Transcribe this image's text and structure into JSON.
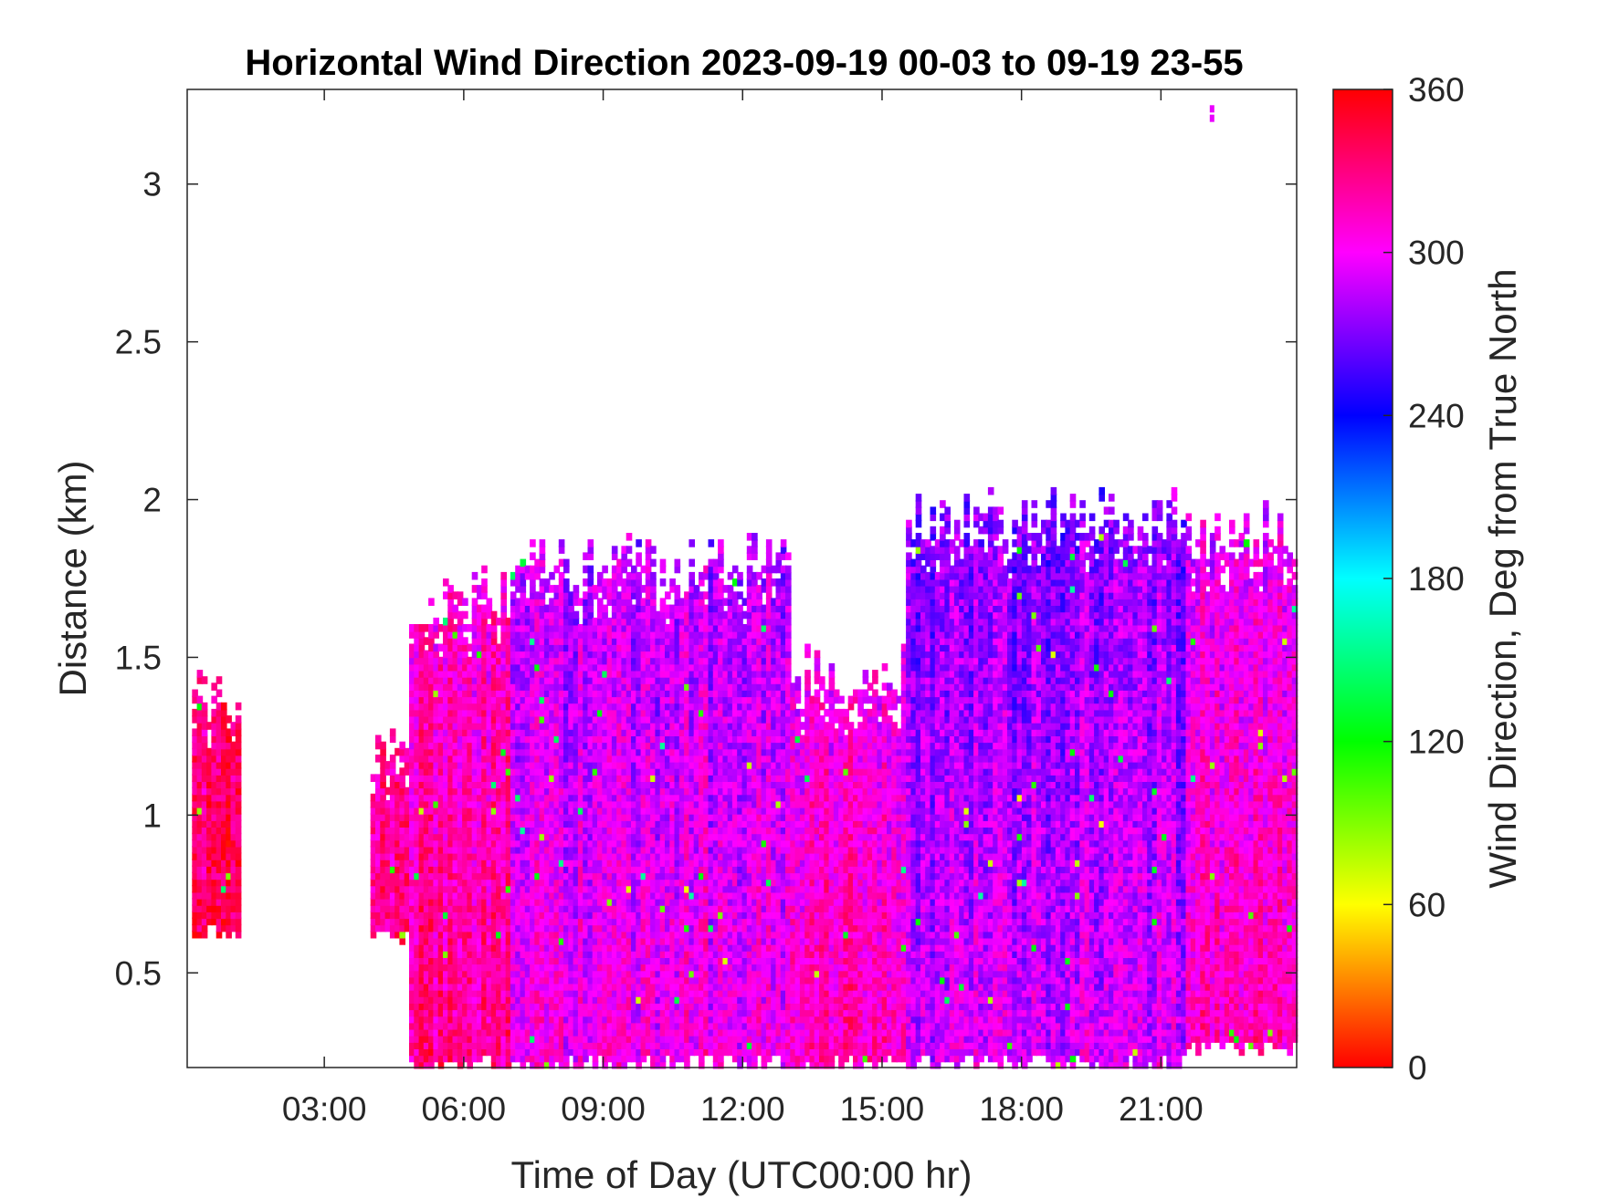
{
  "chart_data": {
    "type": "heatmap",
    "title": "Horizontal Wind Direction 2023-09-19 00-03 to 09-19 23-55",
    "xlabel": "Time of Day (UTC00:00 hr)",
    "ylabel": "Distance (km)",
    "x_unit": "hour of day (UTC)",
    "xlim": [
      0.05,
      23.92
    ],
    "ylim": [
      0.2,
      3.3
    ],
    "x_ticks": [
      3,
      6,
      9,
      12,
      15,
      18,
      21
    ],
    "x_tick_labels": [
      "03:00",
      "06:00",
      "09:00",
      "12:00",
      "15:00",
      "18:00",
      "21:00"
    ],
    "y_ticks": [
      0.5,
      1,
      1.5,
      2,
      2.5,
      3
    ],
    "y_tick_labels": [
      "0.5",
      "1",
      "1.5",
      "2",
      "2.5",
      "3"
    ],
    "colorbar": {
      "label": "Wind Direction, Deg from True North",
      "range": [
        0,
        360
      ],
      "ticks": [
        0,
        60,
        120,
        180,
        240,
        300,
        360
      ],
      "tick_labels": [
        "0",
        "60",
        "120",
        "180",
        "240",
        "300",
        "360"
      ],
      "colormap": [
        "#ff0000",
        "#ffff00",
        "#00ff00",
        "#00ffff",
        "#0000ff",
        "#ff00ff",
        "#ff0000"
      ]
    },
    "grid": false,
    "data_regions": [
      {
        "x_range": [
          0.15,
          1.2
        ],
        "top_km": 1.37,
        "bottom_km": 0.62,
        "dominant_direction_deg": 340
      },
      {
        "x_range": [
          4.0,
          4.8
        ],
        "top_km": 1.2,
        "bottom_km": 0.6,
        "dominant_direction_deg": 330
      },
      {
        "x_range": [
          4.8,
          7.0
        ],
        "top_km": 1.7,
        "bottom_km": 0.2,
        "dominant_direction_deg": 325
      },
      {
        "x_range": [
          7.0,
          13.0
        ],
        "top_km": 1.8,
        "bottom_km": 0.2,
        "dominant_direction_deg": 300
      },
      {
        "x_range": [
          13.0,
          15.5
        ],
        "top_km": 1.45,
        "bottom_km": 0.2,
        "dominant_direction_deg": 315
      },
      {
        "x_range": [
          15.5,
          21.5
        ],
        "top_km": 1.95,
        "bottom_km": 0.2,
        "dominant_direction_deg": 290
      },
      {
        "x_range": [
          21.5,
          23.92
        ],
        "top_km": 1.9,
        "bottom_km": 0.25,
        "dominant_direction_deg": 310
      }
    ]
  }
}
